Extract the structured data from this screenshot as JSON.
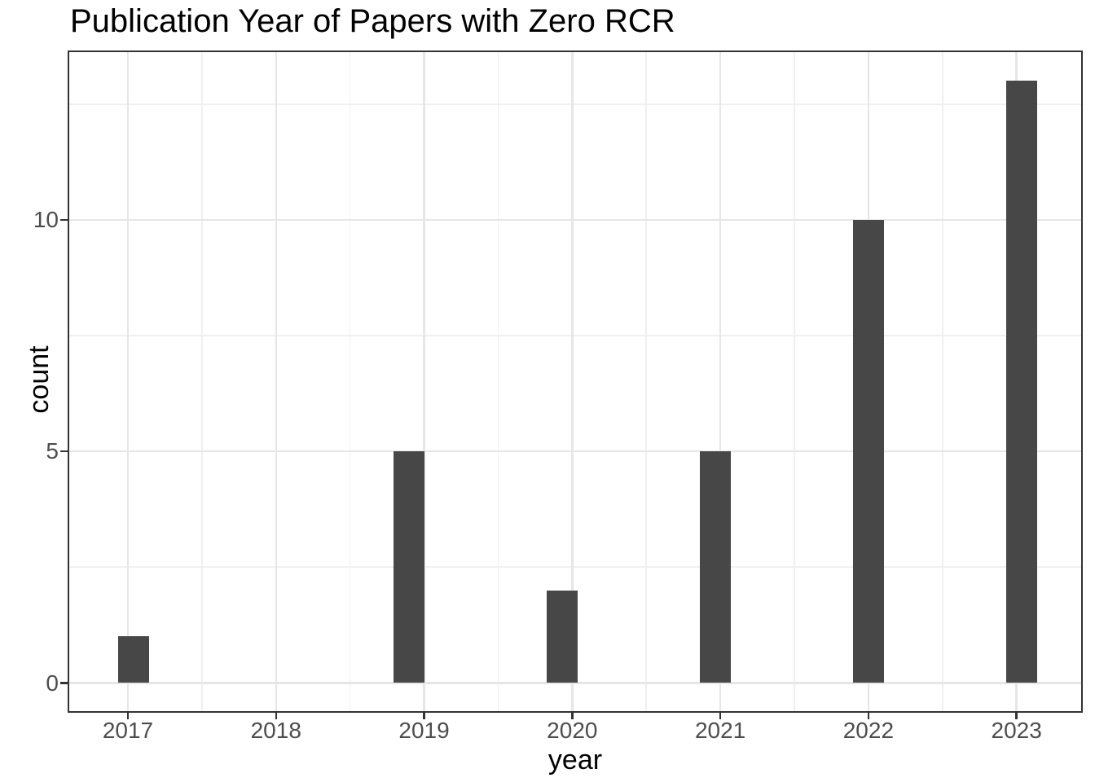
{
  "chart_data": {
    "type": "bar",
    "title": "Publication Year of Papers with Zero RCR",
    "xlabel": "year",
    "ylabel": "count",
    "categories": [
      "2017",
      "2018",
      "2019",
      "2020",
      "2021",
      "2022",
      "2023"
    ],
    "values": [
      1,
      0,
      5,
      2,
      5,
      10,
      13
    ],
    "ylim": [
      0,
      13
    ],
    "y_major_ticks": [
      0,
      5,
      10
    ],
    "y_minor_gridlines": [
      2.5,
      7.5,
      12.5
    ],
    "grid": "major and minor, horizontal and vertical",
    "legend_position": "none",
    "colors": {
      "bar_fill": "#474747",
      "axis_text": "#4d4d4d",
      "title_text": "#000000",
      "axis_title_text": "#000000",
      "panel_border": "#333333",
      "tick_mark": "#333333",
      "grid_major": "#e6e6e6",
      "grid_minor": "#f0f0f0",
      "background": "#ffffff"
    }
  }
}
